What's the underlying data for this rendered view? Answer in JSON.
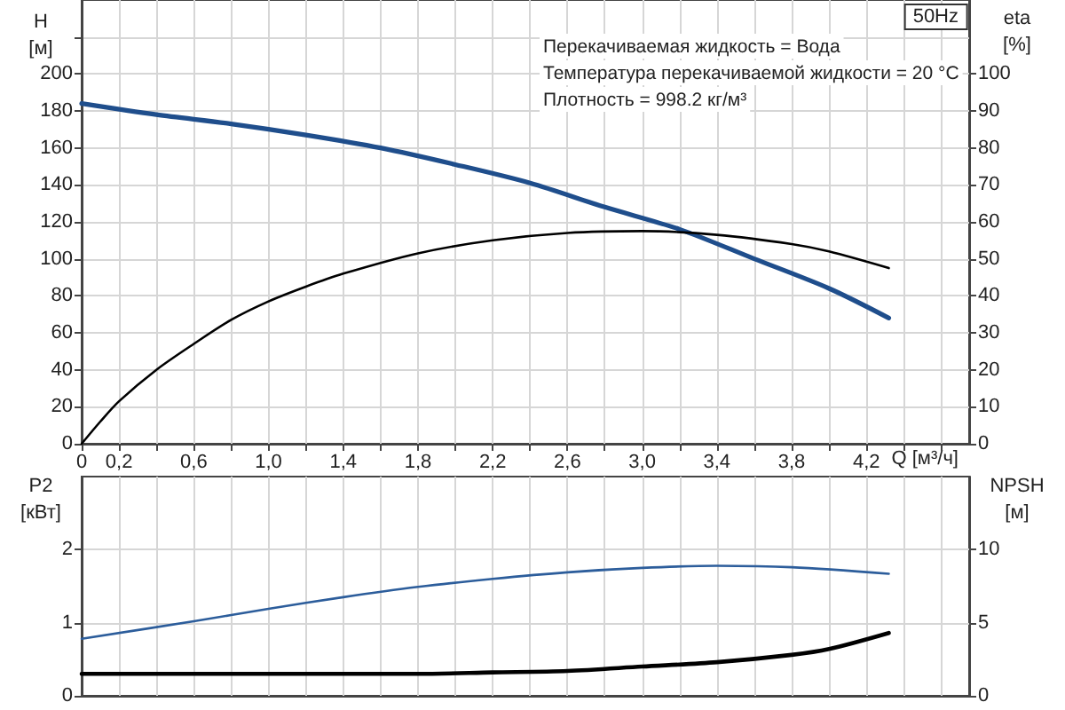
{
  "chart_data": [
    {
      "type": "line",
      "title": "50Hz",
      "xlabel": "Q [м³/ч]",
      "ylabel": "H [м]",
      "y2label": "eta [%]",
      "annotations": [
        "Перекачиваемая жидкость = Вода",
        "Температура перекачиваемой жидкости = 20 °C",
        "Плотность = 998.2 кг/м³"
      ],
      "xlim": [
        0,
        4.75
      ],
      "xticks": [
        0,
        {
          "value": 0.2,
          "label": "0,2"
        },
        {
          "value": 0.4,
          "label": null
        },
        {
          "value": 0.6,
          "label": "0,6"
        },
        {
          "value": 0.8,
          "label": null
        },
        {
          "value": 1.0,
          "label": "1,0"
        },
        {
          "value": 1.2,
          "label": null
        },
        {
          "value": 1.4,
          "label": "1,4"
        },
        {
          "value": 1.6,
          "label": null
        },
        {
          "value": 1.8,
          "label": "1,8"
        },
        {
          "value": 2.0,
          "label": null
        },
        {
          "value": 2.2,
          "label": "2,2"
        },
        {
          "value": 2.4,
          "label": null
        },
        {
          "value": 2.6,
          "label": "2,6"
        },
        {
          "value": 2.8,
          "label": null
        },
        {
          "value": 3.0,
          "label": "3,0"
        },
        {
          "value": 3.2,
          "label": null
        },
        {
          "value": 3.4,
          "label": "3,4"
        },
        {
          "value": 3.6,
          "label": null
        },
        {
          "value": 3.8,
          "label": "3,8"
        },
        {
          "value": 4.0,
          "label": null
        },
        {
          "value": 4.2,
          "label": "4,2"
        },
        {
          "value": 4.4,
          "label": null
        },
        {
          "value": 4.6,
          "label": null
        }
      ],
      "ylim": [
        0,
        240
      ],
      "yticks": [
        0,
        20,
        40,
        60,
        80,
        100,
        120,
        140,
        160,
        180,
        200,
        {
          "value": 220,
          "label": null
        }
      ],
      "y2lim": [
        0,
        120
      ],
      "y2ticks": [
        0,
        10,
        20,
        30,
        40,
        50,
        60,
        70,
        80,
        90,
        100
      ],
      "grid": true,
      "marker": "none",
      "series": [
        {
          "color": "#1f4e8c",
          "x": [
            0,
            0.4,
            0.8,
            1.2,
            1.6,
            2.0,
            2.4,
            2.8,
            3.2,
            3.6,
            4.0,
            4.32
          ],
          "values": [
            184,
            178,
            173,
            167,
            160,
            151,
            141,
            128,
            116,
            100,
            84,
            68
          ]
        },
        {
          "color": "#000000",
          "axis": "y2",
          "x": [
            0,
            0.1,
            0.2,
            0.4,
            0.6,
            0.8,
            1.0,
            1.2,
            1.4,
            1.8,
            2.2,
            2.6,
            3.0,
            3.4,
            3.8,
            4.0,
            4.32
          ],
          "values": [
            0,
            6,
            11.5,
            20,
            27,
            33.5,
            38.5,
            42.5,
            46,
            51.5,
            55,
            57,
            57.5,
            56.5,
            54,
            52,
            47.5
          ]
        }
      ]
    },
    {
      "type": "line",
      "ylabel": "P2 [кВт]",
      "y2label": "NPSH [м]",
      "xlim": [
        0,
        4.75
      ],
      "xticks": [
        0,
        0.2,
        0.4,
        0.6,
        0.8,
        1.0,
        1.2,
        1.4,
        1.6,
        1.8,
        2.0,
        2.2,
        2.4,
        2.6,
        2.8,
        3.0,
        3.2,
        3.4,
        3.6,
        3.8,
        4.0,
        4.2,
        4.4,
        4.6
      ],
      "tick_labels": "y",
      "ylim": [
        0,
        3
      ],
      "yticks": [
        0,
        1,
        2
      ],
      "y2lim": [
        0,
        15
      ],
      "y2ticks": [
        0,
        5,
        10
      ],
      "grid": true,
      "marker": "none",
      "series": [
        {
          "color": "#2c5d9b",
          "x": [
            0,
            0.6,
            1.0,
            1.4,
            1.8,
            2.2,
            2.6,
            3.0,
            3.4,
            3.8,
            4.32
          ],
          "values": [
            0.78,
            1.02,
            1.19,
            1.35,
            1.49,
            1.6,
            1.69,
            1.75,
            1.78,
            1.76,
            1.67
          ]
        },
        {
          "color": "#000000",
          "axis": "y2",
          "x": [
            0,
            0.6,
            1.4,
            1.8,
            2.2,
            2.6,
            3.0,
            3.4,
            3.8,
            4.0,
            4.32
          ],
          "values": [
            1.5,
            1.5,
            1.5,
            1.5,
            1.6,
            1.7,
            2.0,
            2.3,
            2.8,
            3.2,
            4.3
          ]
        }
      ]
    }
  ]
}
